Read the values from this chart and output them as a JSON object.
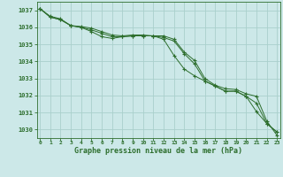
{
  "title": "Graphe pression niveau de la mer (hPa)",
  "bg_color": "#cce8e8",
  "grid_color": "#aad0cc",
  "line_color": "#2d6e2d",
  "ylim": [
    1029.5,
    1037.5
  ],
  "yticks": [
    1030,
    1031,
    1032,
    1033,
    1034,
    1035,
    1036,
    1037
  ],
  "xticks": [
    0,
    1,
    2,
    3,
    4,
    5,
    6,
    7,
    8,
    9,
    10,
    11,
    12,
    13,
    14,
    15,
    16,
    17,
    18,
    19,
    20,
    21,
    22,
    23
  ],
  "xlim": [
    -0.3,
    23.3
  ],
  "line1": [
    1037.1,
    1036.65,
    1036.5,
    1036.1,
    1036.05,
    1035.95,
    1035.75,
    1035.55,
    1035.5,
    1035.55,
    1035.55,
    1035.5,
    1035.5,
    1035.3,
    1034.55,
    1034.05,
    1033.0,
    1032.6,
    1032.4,
    1032.35,
    1032.1,
    1031.95,
    1030.5,
    1029.65
  ],
  "line2": [
    1037.1,
    1036.6,
    1036.45,
    1036.1,
    1036.0,
    1035.85,
    1035.65,
    1035.45,
    1035.45,
    1035.5,
    1035.5,
    1035.5,
    1035.4,
    1035.2,
    1034.45,
    1033.85,
    1032.85,
    1032.55,
    1032.25,
    1032.25,
    1031.95,
    1031.55,
    1030.35,
    1029.85
  ],
  "line3": [
    1037.1,
    1036.6,
    1036.45,
    1036.1,
    1036.0,
    1035.75,
    1035.45,
    1035.35,
    1035.45,
    1035.5,
    1035.5,
    1035.5,
    1035.3,
    1034.35,
    1033.55,
    1033.15,
    1032.85,
    1032.55,
    1032.25,
    1032.25,
    1031.95,
    1031.05,
    1030.35,
    1029.85
  ]
}
